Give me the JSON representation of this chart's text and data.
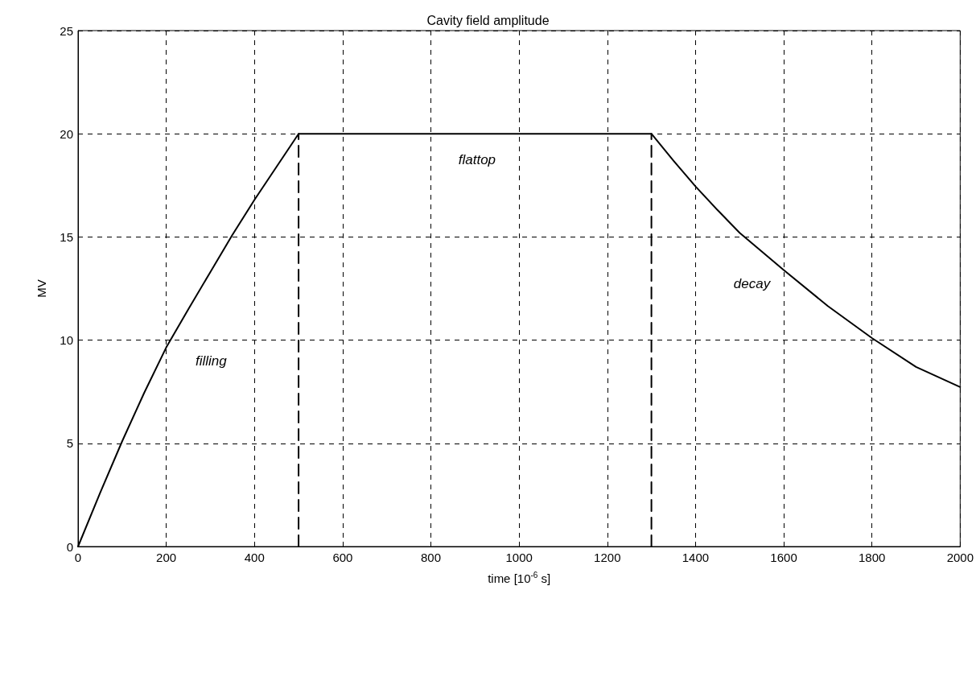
{
  "chart_data": {
    "type": "line",
    "title": "Cavity field amplitude",
    "xlabel": "time [10$^{-6}$ s]",
    "ylabel": "MV",
    "series": [
      {
        "color": "#000000",
        "x": [
          0,
          50,
          100,
          150,
          200,
          250,
          300,
          350,
          400,
          450,
          500,
          600,
          700,
          800,
          900,
          1000,
          1100,
          1200,
          1300,
          1350,
          1400,
          1450,
          1500,
          1600,
          1700,
          1800,
          1900,
          2000
        ],
        "values": [
          0,
          2.6,
          5.1,
          7.45,
          9.65,
          11.5,
          13.3,
          15.1,
          16.8,
          18.4,
          20,
          20,
          20,
          20,
          20,
          20,
          20,
          20,
          20,
          18.7,
          17.45,
          16.3,
          15.2,
          13.4,
          11.65,
          10.1,
          8.7,
          7.73
        ]
      },
      {
        "color": "#000000",
        "x": [
          500,
          500
        ],
        "values": [
          0,
          20
        ],
        "line_style": "dashed"
      },
      {
        "color": "#000000",
        "x": [
          1300,
          1300
        ],
        "values": [
          0,
          20
        ],
        "line_style": "dashed"
      }
    ],
    "annotations": [
      "filling",
      "flattop",
      "decay"
    ],
    "xlim": [
      0,
      2000
    ],
    "xticks": [
      0,
      200,
      400,
      600,
      800,
      1000,
      1200,
      1400,
      1600,
      1800,
      2000
    ],
    "ylim": [
      0,
      25
    ],
    "yticks": [
      0,
      5,
      10,
      15,
      20,
      25
    ],
    "grid": true,
    "marker": "none",
    "line_style": "solid"
  }
}
